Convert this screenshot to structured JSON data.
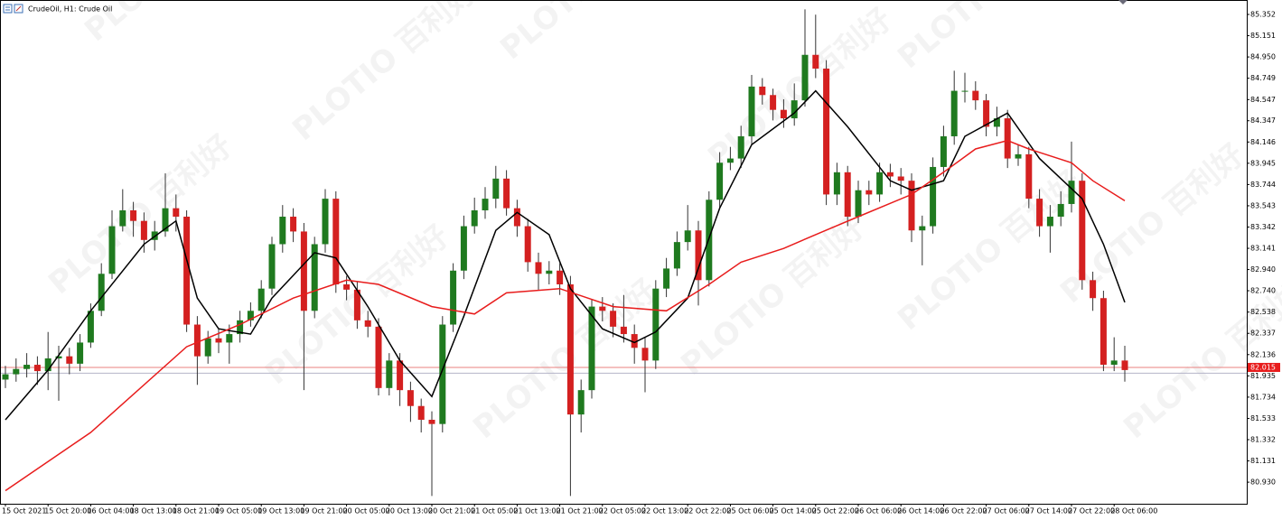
{
  "chart_data": {
    "type": "candlestick",
    "title": "CrudeOil, H1:  Crude Oil",
    "watermark": [
      "PLOTIO",
      "百利好"
    ],
    "up_color": "#1f7a1f",
    "down_color": "#d42020",
    "wick_color": "#333333",
    "categories": [
      "15 Oct 2021",
      null,
      null,
      null,
      "15 Oct 20:00",
      null,
      null,
      null,
      "16 Oct 04:00",
      null,
      null,
      null,
      "18 Oct 13:00",
      null,
      null,
      null,
      "18 Oct 21:00",
      null,
      null,
      null,
      "19 Oct 05:00",
      null,
      null,
      null,
      "19 Oct 13:00",
      null,
      null,
      null,
      "19 Oct 21:00",
      null,
      null,
      null,
      "20 Oct 05:00",
      null,
      null,
      null,
      "20 Oct 13:00",
      null,
      null,
      null,
      "20 Oct 21:00",
      null,
      null,
      null,
      "21 Oct 05:00",
      null,
      null,
      null,
      "21 Oct 13:00",
      null,
      null,
      null,
      "21 Oct 21:00",
      null,
      null,
      null,
      "22 Oct 05:00",
      null,
      null,
      null,
      "22 Oct 13:00",
      null,
      null,
      null,
      "22 Oct 22:00",
      null,
      null,
      null,
      "25 Oct 06:00",
      null,
      null,
      null,
      "25 Oct 14:00",
      null,
      null,
      null,
      "25 Oct 22:00",
      null,
      null,
      null,
      "26 Oct 06:00",
      null,
      null,
      null,
      "26 Oct 14:00",
      null,
      null,
      null,
      "26 Oct 22:00",
      null,
      null,
      null,
      "27 Oct 06:00",
      null,
      null,
      null,
      "27 Oct 14:00",
      null,
      null,
      null,
      "27 Oct 22:00",
      null,
      null,
      null,
      "28 Oct 06:00",
      null
    ],
    "open": [
      81.9,
      81.95,
      82.0,
      82.04,
      81.98,
      82.1,
      82.12,
      82.05,
      82.25,
      82.55,
      82.9,
      83.35,
      83.5,
      83.4,
      83.22,
      83.3,
      83.52,
      83.44,
      82.42,
      82.12,
      82.29,
      82.25,
      82.33,
      82.46,
      82.55,
      82.76,
      83.18,
      83.44,
      83.3,
      82.55,
      83.18,
      83.61,
      82.8,
      82.75,
      82.46,
      82.4,
      81.82,
      82.08,
      81.8,
      81.65,
      81.52,
      81.48,
      82.42,
      82.93,
      83.35,
      83.5,
      83.61,
      83.8,
      83.52,
      83.35,
      83.01,
      82.9,
      82.93,
      82.8,
      81.57,
      81.8,
      82.59,
      82.55,
      82.4,
      82.33,
      82.2,
      82.08,
      82.76,
      82.95,
      83.2,
      83.31,
      82.84,
      83.6,
      83.95,
      83.99,
      84.2,
      84.67,
      84.59,
      84.45,
      84.37,
      84.54,
      84.97,
      84.84,
      83.65,
      83.86,
      83.44,
      83.69,
      83.65,
      83.86,
      83.82,
      83.78,
      83.31,
      83.35,
      83.91,
      84.2,
      84.63,
      84.63,
      84.54,
      84.29,
      84.37,
      83.99,
      84.03,
      83.61,
      83.35,
      83.44,
      83.56,
      83.78,
      82.84,
      82.67,
      82.04,
      82.08
    ],
    "high": [
      82.03,
      82.1,
      82.15,
      82.12,
      82.35,
      82.22,
      82.2,
      82.33,
      82.62,
      83.0,
      83.5,
      83.7,
      83.58,
      83.48,
      83.4,
      83.85,
      83.65,
      83.5,
      82.5,
      82.36,
      82.38,
      82.42,
      82.55,
      82.63,
      82.84,
      83.25,
      83.55,
      83.52,
      83.38,
      83.25,
      83.7,
      83.68,
      82.88,
      82.83,
      82.55,
      82.48,
      82.15,
      82.15,
      81.88,
      81.72,
      81.6,
      82.5,
      83.0,
      83.45,
      83.62,
      83.72,
      83.92,
      83.88,
      83.6,
      83.42,
      83.1,
      83.02,
      83.0,
      82.88,
      81.9,
      82.66,
      82.68,
      82.62,
      82.7,
      82.42,
      82.3,
      82.84,
      83.05,
      83.3,
      83.55,
      83.4,
      83.68,
      84.05,
      84.1,
      84.3,
      84.78,
      84.75,
      84.65,
      84.55,
      84.7,
      85.4,
      85.35,
      84.92,
      83.95,
      83.92,
      83.78,
      83.78,
      83.95,
      83.94,
      83.9,
      83.85,
      83.45,
      84.0,
      84.3,
      84.82,
      84.8,
      84.72,
      84.6,
      84.48,
      84.45,
      84.12,
      84.1,
      83.7,
      83.55,
      83.68,
      84.15,
      83.85,
      82.92,
      82.74,
      82.3,
      82.22
    ],
    "low": [
      81.82,
      81.88,
      81.92,
      81.85,
      81.8,
      81.7,
      81.95,
      81.98,
      82.2,
      82.5,
      82.85,
      83.3,
      83.25,
      83.1,
      83.12,
      83.25,
      83.3,
      82.35,
      81.85,
      82.05,
      82.15,
      82.05,
      82.25,
      82.4,
      82.48,
      82.7,
      83.1,
      83.2,
      81.8,
      82.48,
      83.1,
      82.72,
      82.65,
      82.38,
      82.3,
      81.75,
      81.75,
      81.65,
      81.5,
      81.4,
      80.8,
      81.4,
      82.35,
      82.85,
      83.28,
      83.42,
      83.52,
      83.45,
      83.25,
      82.92,
      82.75,
      82.8,
      82.7,
      80.8,
      81.4,
      81.72,
      82.45,
      82.3,
      82.25,
      82.05,
      81.78,
      82.0,
      82.68,
      82.88,
      83.12,
      82.6,
      82.78,
      83.52,
      83.88,
      83.9,
      84.12,
      84.5,
      84.35,
      84.28,
      84.3,
      84.48,
      84.75,
      83.55,
      83.55,
      83.35,
      83.38,
      83.55,
      83.58,
      83.72,
      83.65,
      83.2,
      82.98,
      83.28,
      83.82,
      84.12,
      84.52,
      84.45,
      84.2,
      84.2,
      83.9,
      83.92,
      83.52,
      83.25,
      83.1,
      83.35,
      83.48,
      82.75,
      82.55,
      81.98,
      81.98,
      81.88
    ],
    "close": [
      81.95,
      82.0,
      82.04,
      81.98,
      82.1,
      82.12,
      82.05,
      82.25,
      82.55,
      82.9,
      83.35,
      83.5,
      83.4,
      83.22,
      83.3,
      83.52,
      83.44,
      82.42,
      82.12,
      82.29,
      82.25,
      82.33,
      82.46,
      82.55,
      82.76,
      83.18,
      83.44,
      83.3,
      82.55,
      83.18,
      83.61,
      82.8,
      82.75,
      82.46,
      82.4,
      81.82,
      82.08,
      81.8,
      81.65,
      81.52,
      81.48,
      82.42,
      82.93,
      83.35,
      83.5,
      83.61,
      83.8,
      83.52,
      83.35,
      83.01,
      82.9,
      82.93,
      82.8,
      81.57,
      81.8,
      82.59,
      82.55,
      82.4,
      82.33,
      82.2,
      82.08,
      82.76,
      82.95,
      83.2,
      83.31,
      82.84,
      83.6,
      83.95,
      83.99,
      84.2,
      84.67,
      84.59,
      84.45,
      84.37,
      84.54,
      84.97,
      84.84,
      83.65,
      83.86,
      83.44,
      83.69,
      83.65,
      83.86,
      83.82,
      83.78,
      83.31,
      83.35,
      83.91,
      84.2,
      84.63,
      84.63,
      84.54,
      84.29,
      84.37,
      83.99,
      84.03,
      83.61,
      83.35,
      83.44,
      83.56,
      83.78,
      82.84,
      82.67,
      82.04,
      82.08,
      81.99
    ],
    "lines": [
      {
        "color": "#000000",
        "x": [
          0,
          4,
          8,
          13,
          16,
          18,
          20,
          23,
          25,
          29,
          31,
          34,
          37,
          40,
          43,
          46,
          48,
          51,
          53,
          56,
          59,
          61,
          64,
          67,
          70,
          74,
          76,
          79,
          83,
          85,
          88,
          90,
          94,
          97,
          101,
          103,
          105
        ],
        "values": [
          81.52,
          81.99,
          82.55,
          83.18,
          83.4,
          82.67,
          82.38,
          82.33,
          82.67,
          83.1,
          83.05,
          82.59,
          82.08,
          81.74,
          82.5,
          83.31,
          83.48,
          83.27,
          82.76,
          82.38,
          82.25,
          82.35,
          82.67,
          83.52,
          84.12,
          84.42,
          84.63,
          84.29,
          83.78,
          83.69,
          83.78,
          84.2,
          84.42,
          83.99,
          83.61,
          83.18,
          82.63
        ]
      },
      {
        "color": "#e81c1c",
        "x": [
          0,
          8,
          17,
          22,
          27,
          32,
          35,
          40,
          44,
          47,
          52,
          57,
          62,
          66,
          69,
          73,
          76,
          80,
          85,
          88,
          91,
          94,
          96,
          100,
          102,
          105
        ],
        "values": [
          80.85,
          81.4,
          82.21,
          82.42,
          82.67,
          82.84,
          82.8,
          82.59,
          82.52,
          82.72,
          82.76,
          82.59,
          82.55,
          82.8,
          83.01,
          83.14,
          83.27,
          83.44,
          83.65,
          83.86,
          84.08,
          84.16,
          84.08,
          83.95,
          83.78,
          83.59
        ]
      }
    ],
    "price_lines": [
      {
        "value": 82.015,
        "color": "#e8807f",
        "label_bg": "#e81c1c"
      },
      {
        "value": 81.96,
        "color": "#b4b4c8"
      }
    ],
    "ylim": [
      80.726,
      85.48
    ],
    "yticks": [
      85.352,
      85.151,
      {
        "value": 84.95,
        "label": "84.950"
      },
      84.749,
      84.547,
      84.347,
      84.146,
      83.945,
      83.744,
      83.543,
      83.342,
      83.141,
      {
        "value": 82.94,
        "label": "82.940"
      },
      {
        "value": 82.74,
        "label": "82.740"
      },
      82.538,
      82.337,
      82.136,
      81.935,
      81.734,
      81.533,
      81.332,
      81.131,
      {
        "value": 80.93,
        "label": "80.930"
      }
    ]
  }
}
